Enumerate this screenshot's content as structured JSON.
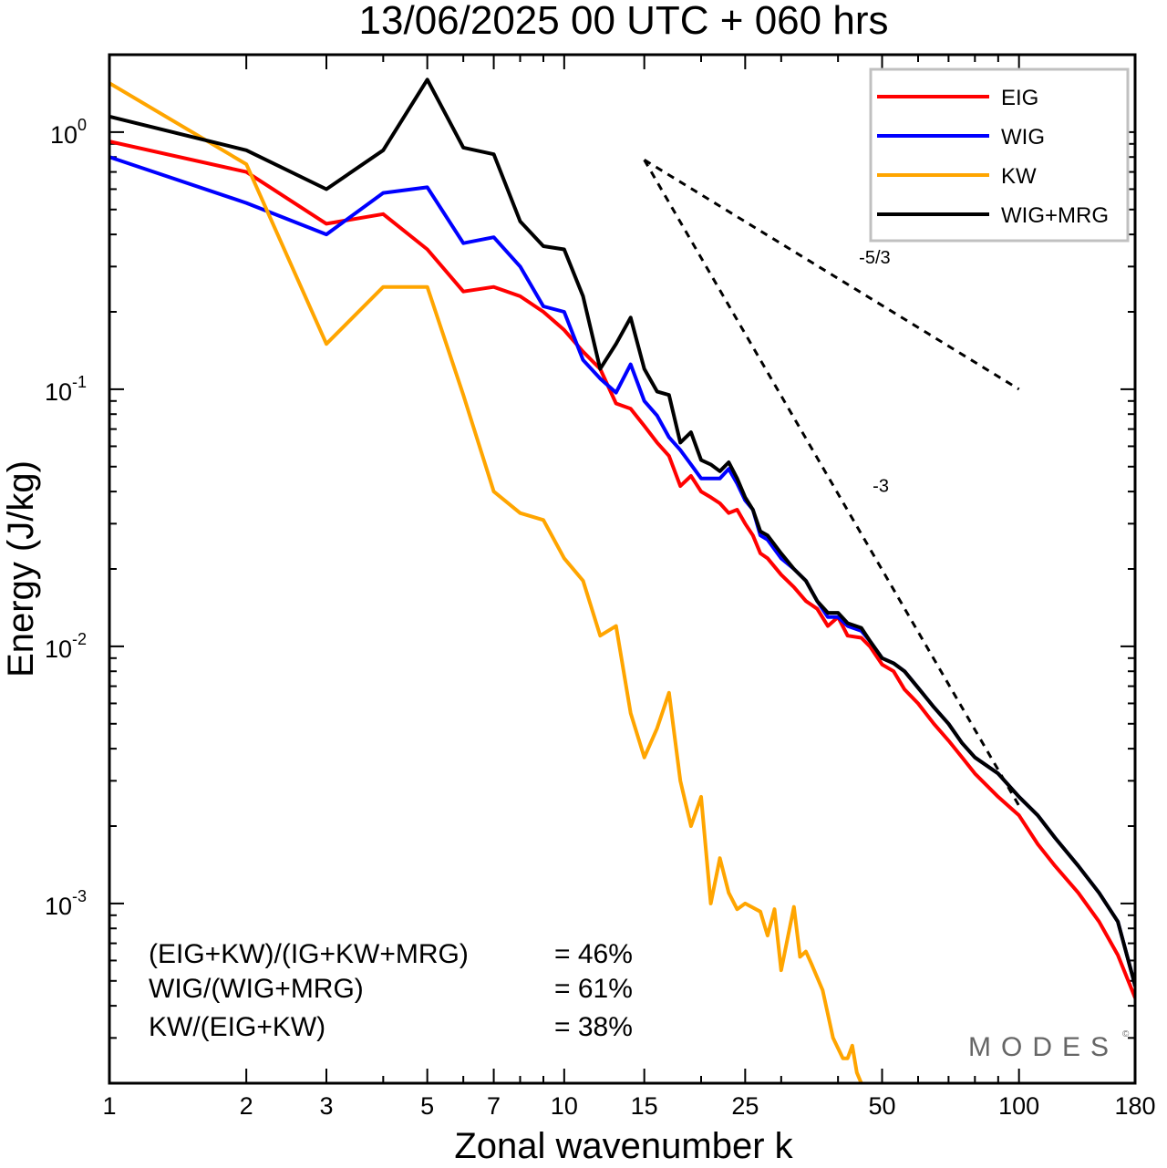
{
  "chart_data": {
    "type": "line",
    "title": "13/06/2025  00 UTC  + 060 hrs",
    "xlabel": "Zonal wavenumber k",
    "ylabel": "Energy (J/kg)",
    "xscale": "log",
    "yscale": "log",
    "xlim": [
      1,
      180
    ],
    "ylim": [
      0.0002,
      2.0
    ],
    "x_ticks": [
      "1",
      "2",
      "3",
      "5",
      "7",
      "10",
      "15",
      "25",
      "50",
      "100",
      "180"
    ],
    "y_ticks": [
      {
        "base": "10",
        "exp": "0"
      },
      {
        "base": "10",
        "exp": "-1"
      },
      {
        "base": "10",
        "exp": "-2"
      },
      {
        "base": "10",
        "exp": "-3"
      }
    ],
    "legend_position": "top-right",
    "series": [
      {
        "name": "EIG",
        "color": "#ff0000",
        "points": [
          [
            1,
            0.92
          ],
          [
            2,
            0.7
          ],
          [
            3,
            0.44
          ],
          [
            4,
            0.48
          ],
          [
            5,
            0.35
          ],
          [
            6,
            0.24
          ],
          [
            7,
            0.25
          ],
          [
            8,
            0.23
          ],
          [
            9,
            0.2
          ],
          [
            10,
            0.17
          ],
          [
            11,
            0.14
          ],
          [
            12,
            0.12
          ],
          [
            13,
            0.088
          ],
          [
            14,
            0.084
          ],
          [
            15,
            0.072
          ],
          [
            16,
            0.062
          ],
          [
            17,
            0.055
          ],
          [
            18,
            0.042
          ],
          [
            19,
            0.046
          ],
          [
            20,
            0.04
          ],
          [
            21,
            0.038
          ],
          [
            22,
            0.036
          ],
          [
            23,
            0.033
          ],
          [
            24,
            0.034
          ],
          [
            25,
            0.03
          ],
          [
            26,
            0.027
          ],
          [
            27,
            0.023
          ],
          [
            28,
            0.022
          ],
          [
            30,
            0.019
          ],
          [
            32,
            0.017
          ],
          [
            34,
            0.015
          ],
          [
            36,
            0.014
          ],
          [
            38,
            0.012
          ],
          [
            40,
            0.013
          ],
          [
            42,
            0.011
          ],
          [
            45,
            0.0108
          ],
          [
            47,
            0.01
          ],
          [
            50,
            0.0085
          ],
          [
            53,
            0.008
          ],
          [
            56,
            0.0068
          ],
          [
            60,
            0.006
          ],
          [
            65,
            0.005
          ],
          [
            70,
            0.0043
          ],
          [
            75,
            0.0037
          ],
          [
            80,
            0.0032
          ],
          [
            90,
            0.0026
          ],
          [
            100,
            0.0022
          ],
          [
            110,
            0.0017
          ],
          [
            120,
            0.0014
          ],
          [
            135,
            0.0011
          ],
          [
            150,
            0.00085
          ],
          [
            165,
            0.00063
          ],
          [
            180,
            0.00043
          ]
        ]
      },
      {
        "name": "WIG",
        "color": "#0000ff",
        "points": [
          [
            1,
            0.8
          ],
          [
            2,
            0.53
          ],
          [
            3,
            0.4
          ],
          [
            4,
            0.58
          ],
          [
            5,
            0.61
          ],
          [
            6,
            0.37
          ],
          [
            7,
            0.39
          ],
          [
            8,
            0.3
          ],
          [
            9,
            0.21
          ],
          [
            10,
            0.2
          ],
          [
            11,
            0.13
          ],
          [
            12,
            0.11
          ],
          [
            13,
            0.097
          ],
          [
            14,
            0.125
          ],
          [
            15,
            0.09
          ],
          [
            16,
            0.079
          ],
          [
            17,
            0.065
          ],
          [
            18,
            0.058
          ],
          [
            19,
            0.051
          ],
          [
            20,
            0.045
          ],
          [
            21,
            0.045
          ],
          [
            22,
            0.045
          ],
          [
            23,
            0.049
          ],
          [
            24,
            0.043
          ],
          [
            25,
            0.037
          ],
          [
            26,
            0.034
          ],
          [
            27,
            0.027
          ],
          [
            28,
            0.026
          ],
          [
            30,
            0.022
          ],
          [
            32,
            0.02
          ],
          [
            34,
            0.018
          ],
          [
            36,
            0.015
          ],
          [
            38,
            0.013
          ],
          [
            40,
            0.013
          ],
          [
            42,
            0.012
          ],
          [
            45,
            0.0115
          ],
          [
            47,
            0.0105
          ],
          [
            50,
            0.009
          ],
          [
            53,
            0.0086
          ],
          [
            56,
            0.008
          ],
          [
            60,
            0.0069
          ],
          [
            65,
            0.0058
          ],
          [
            70,
            0.005
          ],
          [
            75,
            0.0042
          ],
          [
            80,
            0.0037
          ],
          [
            90,
            0.0032
          ],
          [
            100,
            0.0026
          ],
          [
            110,
            0.0022
          ],
          [
            120,
            0.0018
          ],
          [
            135,
            0.0014
          ],
          [
            150,
            0.0011
          ],
          [
            165,
            0.00085
          ],
          [
            180,
            0.00048
          ]
        ]
      },
      {
        "name": "KW",
        "color": "#ffa500",
        "points": [
          [
            1,
            1.55
          ],
          [
            2,
            0.75
          ],
          [
            3,
            0.15
          ],
          [
            4,
            0.25
          ],
          [
            5,
            0.25
          ],
          [
            6,
            0.095
          ],
          [
            7,
            0.04
          ],
          [
            8,
            0.033
          ],
          [
            9,
            0.031
          ],
          [
            10,
            0.022
          ],
          [
            11,
            0.018
          ],
          [
            12,
            0.011
          ],
          [
            13,
            0.012
          ],
          [
            14,
            0.0055
          ],
          [
            15,
            0.0037
          ],
          [
            16,
            0.0048
          ],
          [
            17,
            0.0066
          ],
          [
            18,
            0.003
          ],
          [
            19,
            0.002
          ],
          [
            20,
            0.0026
          ],
          [
            21,
            0.001
          ],
          [
            22,
            0.0015
          ],
          [
            23,
            0.0011
          ],
          [
            24,
            0.00095
          ],
          [
            25,
            0.001
          ],
          [
            27,
            0.00093
          ],
          [
            28,
            0.00075
          ],
          [
            29,
            0.00095
          ],
          [
            30,
            0.00055
          ],
          [
            32,
            0.00097
          ],
          [
            33,
            0.00062
          ],
          [
            34,
            0.00065
          ],
          [
            35,
            0.00058
          ],
          [
            37,
            0.00046
          ],
          [
            39,
            0.0003
          ],
          [
            41,
            0.00025
          ],
          [
            42,
            0.00025
          ],
          [
            43,
            0.00028
          ],
          [
            44,
            0.00022
          ],
          [
            45,
            0.0002
          ]
        ]
      },
      {
        "name": "WIG+MRG",
        "color": "#000000",
        "points": [
          [
            1,
            1.15
          ],
          [
            2,
            0.85
          ],
          [
            3,
            0.6
          ],
          [
            4,
            0.85
          ],
          [
            5,
            1.6
          ],
          [
            6,
            0.87
          ],
          [
            7,
            0.82
          ],
          [
            8,
            0.45
          ],
          [
            9,
            0.36
          ],
          [
            10,
            0.35
          ],
          [
            11,
            0.23
          ],
          [
            12,
            0.12
          ],
          [
            13,
            0.15
          ],
          [
            14,
            0.19
          ],
          [
            15,
            0.12
          ],
          [
            16,
            0.098
          ],
          [
            17,
            0.095
          ],
          [
            18,
            0.062
          ],
          [
            19,
            0.068
          ],
          [
            20,
            0.053
          ],
          [
            21,
            0.051
          ],
          [
            22,
            0.048
          ],
          [
            23,
            0.052
          ],
          [
            24,
            0.045
          ],
          [
            25,
            0.038
          ],
          [
            26,
            0.034
          ],
          [
            27,
            0.028
          ],
          [
            28,
            0.027
          ],
          [
            30,
            0.023
          ],
          [
            32,
            0.02
          ],
          [
            34,
            0.018
          ],
          [
            36,
            0.015
          ],
          [
            38,
            0.0135
          ],
          [
            40,
            0.0135
          ],
          [
            42,
            0.0123
          ],
          [
            45,
            0.0118
          ],
          [
            47,
            0.0105
          ],
          [
            50,
            0.009
          ],
          [
            53,
            0.0086
          ],
          [
            56,
            0.008
          ],
          [
            60,
            0.0069
          ],
          [
            65,
            0.0058
          ],
          [
            70,
            0.005
          ],
          [
            75,
            0.0042
          ],
          [
            80,
            0.0037
          ],
          [
            90,
            0.0032
          ],
          [
            100,
            0.0026
          ],
          [
            110,
            0.0022
          ],
          [
            120,
            0.0018
          ],
          [
            135,
            0.0014
          ],
          [
            150,
            0.0011
          ],
          [
            165,
            0.00085
          ],
          [
            180,
            0.00048
          ]
        ]
      }
    ],
    "reference_lines": [
      {
        "label": "-5/3",
        "points": [
          [
            15,
            0.78
          ],
          [
            100,
            0.1
          ]
        ]
      },
      {
        "label": "-3",
        "points": [
          [
            15,
            0.78
          ],
          [
            100,
            0.0024
          ]
        ]
      }
    ]
  },
  "ratios": [
    {
      "label": "(EIG+KW)/(IG+KW+MRG)",
      "value": "= 46%"
    },
    {
      "label": "WIG/(WIG+MRG)",
      "value": "= 61%"
    },
    {
      "label": "KW/(EIG+KW)",
      "value": "= 38%"
    }
  ],
  "brand": {
    "name": "MODES",
    "mark": "©"
  }
}
